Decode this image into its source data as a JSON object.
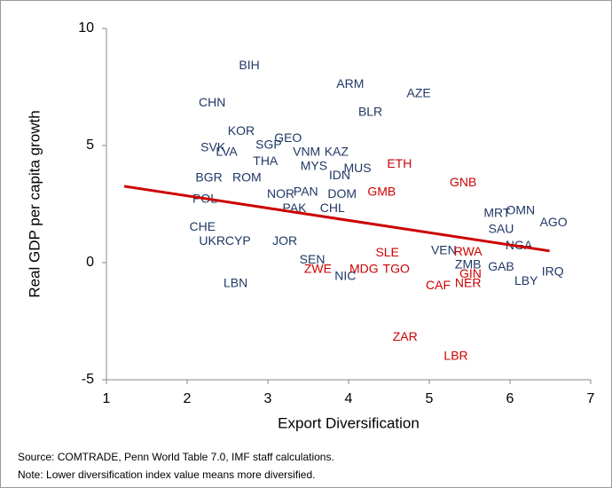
{
  "chart_data": {
    "type": "scatter",
    "xlabel": "Export Diversification",
    "ylabel": "Real GDP per capita growth",
    "xlim": [
      1,
      7
    ],
    "xticks": [
      1,
      2,
      3,
      4,
      5,
      6,
      7
    ],
    "ylim": [
      -5,
      10
    ],
    "yticks": [
      -5,
      0,
      5,
      10
    ],
    "series": [
      {
        "color": "#1f3864",
        "labels": [
          "BIH",
          "ARM",
          "AZE",
          "CHN",
          "BLR",
          "KOR",
          "GEO",
          "SGP",
          "SVK",
          "LVA",
          "VNM",
          "KAZ",
          "THA",
          "MYS",
          "MUS",
          "IDN",
          "BGR",
          "ROM",
          "POL",
          "NOR",
          "PAN",
          "DOM",
          "PAK",
          "CHL",
          "MRT",
          "OMN",
          "SAU",
          "AGO",
          "CHE",
          "UKR",
          "CYP",
          "JOR",
          "VEN",
          "NGA",
          "ZMB",
          "GAB",
          "LBY",
          "IRQ",
          "LBN",
          "SEN",
          "NIC"
        ],
        "x": [
          2.77,
          4.02,
          4.87,
          2.31,
          4.27,
          2.67,
          3.25,
          3.01,
          2.32,
          2.49,
          3.48,
          3.85,
          2.97,
          3.57,
          4.11,
          3.89,
          2.27,
          2.74,
          2.22,
          3.16,
          3.47,
          3.92,
          3.33,
          3.8,
          5.84,
          6.13,
          5.89,
          6.54,
          2.19,
          2.31,
          2.63,
          3.21,
          5.18,
          6.11,
          5.48,
          5.89,
          6.2,
          6.53,
          2.6,
          3.55,
          3.96
        ],
        "values": [
          8.4,
          7.6,
          7.2,
          6.8,
          6.4,
          5.6,
          5.3,
          5.0,
          4.9,
          4.7,
          4.7,
          4.7,
          4.3,
          4.1,
          4.0,
          3.7,
          3.6,
          3.6,
          2.7,
          2.9,
          3.0,
          2.9,
          2.3,
          2.3,
          2.1,
          2.2,
          1.4,
          1.7,
          1.5,
          0.9,
          0.9,
          0.9,
          0.5,
          0.7,
          -0.1,
          -0.2,
          -0.8,
          -0.4,
          -0.9,
          0.1,
          -0.6
        ]
      },
      {
        "color": "#cc0000",
        "labels": [
          "ETH",
          "GNB",
          "GMB",
          "ZWE",
          "MDG",
          "TGO",
          "SLE",
          "CAF",
          "NER",
          "GIN",
          "RWA",
          "ZAR",
          "LBR"
        ],
        "x": [
          4.63,
          5.42,
          4.41,
          3.62,
          4.19,
          4.59,
          4.48,
          5.11,
          5.48,
          5.51,
          5.48,
          4.7,
          5.33
        ],
        "values": [
          4.2,
          3.4,
          3.0,
          -0.3,
          -0.3,
          -0.3,
          0.4,
          -1.0,
          -0.9,
          -0.5,
          0.45,
          -3.2,
          -4.0
        ]
      }
    ],
    "trend": {
      "color": "#cc0000",
      "x": [
        1.22,
        6.49
      ],
      "values": [
        3.26,
        0.5
      ]
    },
    "notes": [
      "Source: COMTRADE, Penn World Table 7.0, IMF staff calculations.",
      "Note: Lower diversification index value means more diversified."
    ]
  }
}
